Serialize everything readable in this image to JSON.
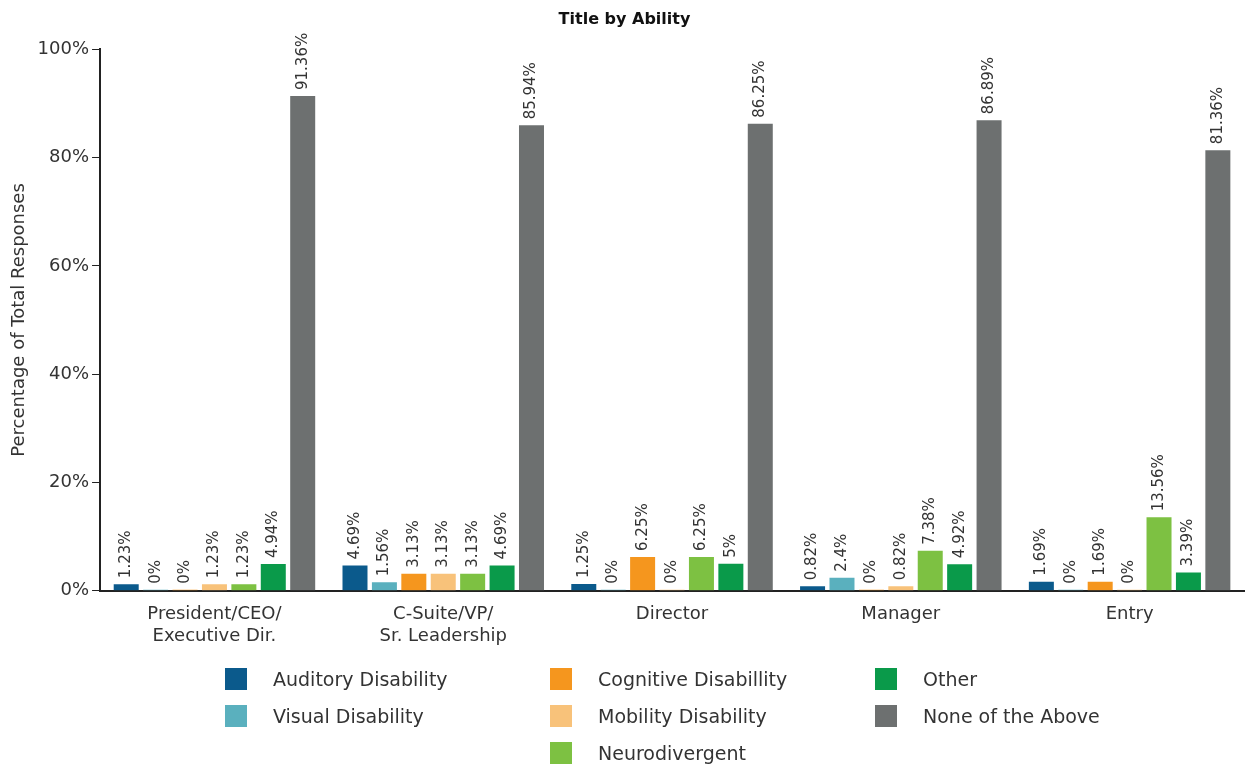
{
  "chart_data": {
    "type": "bar",
    "title": "Title by Ability",
    "ylabel": "Percentage of Total Responses",
    "categories": [
      "President/CEO/\nExecutive Dir.",
      "C-Suite/VP/\nSr. Leadership",
      "Director",
      "Manager",
      "Entry"
    ],
    "ylim": [
      0,
      100
    ],
    "yticks": [
      {
        "value": 0,
        "label": "0%"
      },
      {
        "value": 20,
        "label": "20%"
      },
      {
        "value": 40,
        "label": "40%"
      },
      {
        "value": 60,
        "label": "60%"
      },
      {
        "value": 80,
        "label": "80%"
      },
      {
        "value": 100,
        "label": "100%"
      }
    ],
    "grid": false,
    "legend": "bottom",
    "series": [
      {
        "name": "Auditory Disability",
        "color": "#0b5a8c",
        "values": [
          1.23,
          4.69,
          1.25,
          0.82,
          1.69
        ],
        "value_labels": [
          "1.23%",
          "4.69%",
          "1.25%",
          "0.82%",
          "1.69%"
        ]
      },
      {
        "name": "Visual Disability",
        "color": "#5ab0be",
        "values": [
          0,
          1.56,
          0,
          2.4,
          0
        ],
        "value_labels": [
          "0%",
          "1.56%",
          "0%",
          "2.4%",
          "0%"
        ]
      },
      {
        "name": "Cognitive Disabillity",
        "color": "#f5961e",
        "values": [
          0,
          3.13,
          6.25,
          0,
          1.69
        ],
        "value_labels": [
          "0%",
          "3.13%",
          "6.25%",
          "0%",
          "1.69%"
        ]
      },
      {
        "name": "Mobility Disability",
        "color": "#f8c27a",
        "values": [
          1.23,
          3.13,
          0,
          0.82,
          0
        ],
        "value_labels": [
          "1.23%",
          "3.13%",
          "0%",
          "0.82%",
          "0%"
        ]
      },
      {
        "name": "Neurodivergent",
        "color": "#7dc142",
        "values": [
          1.23,
          3.13,
          6.25,
          7.38,
          13.56
        ],
        "value_labels": [
          "1.23%",
          "3.13%",
          "6.25%",
          "7.38%",
          "13.56%"
        ]
      },
      {
        "name": "Other",
        "color": "#0a9a4a",
        "values": [
          4.94,
          4.69,
          5,
          4.92,
          3.39
        ],
        "value_labels": [
          "4.94%",
          "4.69%",
          "5%",
          "4.92%",
          "3.39%"
        ]
      },
      {
        "name": "None of the Above",
        "color": "#6d7070",
        "values": [
          91.36,
          85.94,
          86.25,
          86.89,
          81.36
        ],
        "value_labels": [
          "91.36%",
          "85.94%",
          "86.25%",
          "86.89%",
          "81.36%"
        ]
      }
    ]
  }
}
